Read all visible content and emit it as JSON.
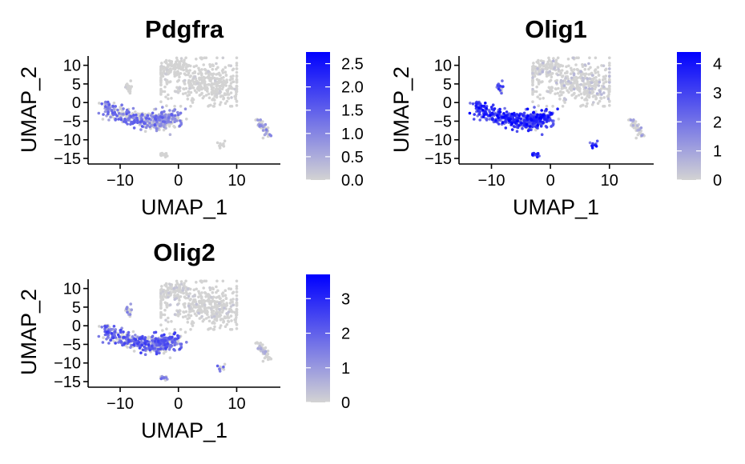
{
  "colors": {
    "low": "#d3d3d3",
    "high": "#0000ff",
    "axis": "#000000"
  },
  "chart_data": [
    {
      "type": "scatter",
      "title": "Pdgfra",
      "xlabel": "UMAP_1",
      "ylabel": "UMAP_2",
      "xlim": [
        -15.5,
        17.5
      ],
      "ylim": [
        -16.5,
        12.5
      ],
      "xticks": [
        -10,
        0,
        10
      ],
      "xtick_labels": [
        "−10",
        "0",
        "10"
      ],
      "yticks": [
        10,
        5,
        0,
        -5,
        -10,
        -15
      ],
      "ytick_labels": [
        "10",
        "5",
        "0",
        "−5",
        "−10",
        "−15"
      ],
      "legend": {
        "placement": "right",
        "min": 0,
        "max": 2.75,
        "ticks": [
          0,
          0.5,
          1,
          1.5,
          2,
          2.5
        ],
        "tick_labels": [
          "0.0",
          "0.5",
          "1.0",
          "1.5",
          "2.0",
          "2.5"
        ]
      },
      "expr": {
        "oligo": 0.42,
        "opc": 0.28,
        "main": 0.03,
        "small": 0.05,
        "right": 0.3,
        "bottom": 0.02
      },
      "grid": false
    },
    {
      "type": "scatter",
      "title": "Olig1",
      "xlabel": "UMAP_1",
      "ylabel": "UMAP_2",
      "xlim": [
        -15.5,
        17.5
      ],
      "ylim": [
        -16.5,
        12.5
      ],
      "xticks": [
        -10,
        0,
        10
      ],
      "xtick_labels": [
        "−10",
        "0",
        "10"
      ],
      "yticks": [
        10,
        5,
        0,
        -5,
        -10,
        -15
      ],
      "ytick_labels": [
        "10",
        "5",
        "0",
        "−5",
        "−10",
        "−15"
      ],
      "legend": {
        "placement": "right",
        "min": 0,
        "max": 4.4,
        "ticks": [
          0,
          1,
          2,
          3,
          4
        ],
        "tick_labels": [
          "0",
          "1",
          "2",
          "3",
          "4"
        ]
      },
      "expr": {
        "oligo": 0.72,
        "opc": 0.62,
        "main": 0.1,
        "small": 0.55,
        "right": 0.2,
        "bottom": 0.7
      },
      "grid": false
    },
    {
      "type": "scatter",
      "title": "Olig2",
      "xlabel": "UMAP_1",
      "ylabel": "UMAP_2",
      "xlim": [
        -15.5,
        17.5
      ],
      "ylim": [
        -16.5,
        12.5
      ],
      "xticks": [
        -10,
        0,
        10
      ],
      "xtick_labels": [
        "−10",
        "0",
        "10"
      ],
      "yticks": [
        10,
        5,
        0,
        -5,
        -10,
        -15
      ],
      "ytick_labels": [
        "10",
        "5",
        "0",
        "−5",
        "−10",
        "−15"
      ],
      "legend": {
        "placement": "right",
        "min": 0,
        "max": 3.7,
        "ticks": [
          0,
          1,
          2,
          3
        ],
        "tick_labels": [
          "0",
          "1",
          "2",
          "3"
        ]
      },
      "expr": {
        "oligo": 0.52,
        "opc": 0.45,
        "main": 0.06,
        "small": 0.3,
        "right": 0.15,
        "bottom": 0.45
      },
      "grid": false
    }
  ]
}
